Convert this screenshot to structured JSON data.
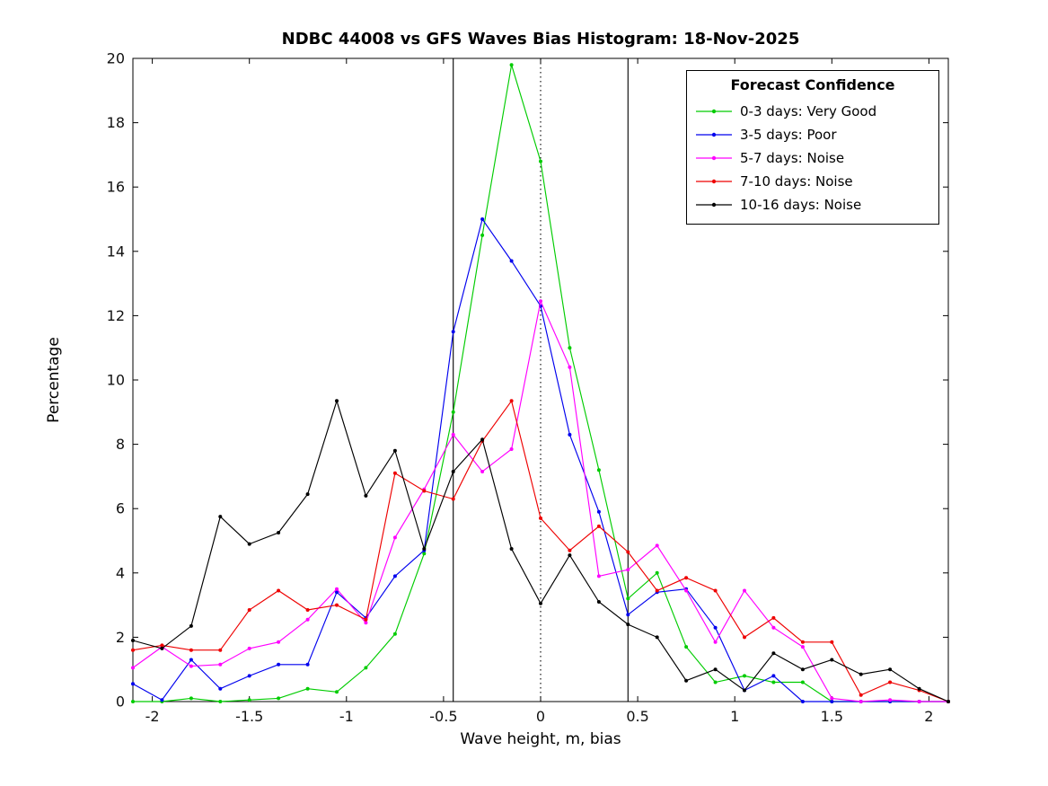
{
  "chart_data": {
    "type": "line",
    "title": "NDBC 44008 vs GFS Waves Bias Histogram: 18-Nov-2025",
    "xlabel": "Wave height, m, bias",
    "ylabel": "Percentage",
    "xlim": [
      -2.1,
      2.1
    ],
    "ylim": [
      0,
      20
    ],
    "grid": false,
    "x_ticks": [
      -2,
      -1.5,
      -1,
      -0.5,
      0,
      0.5,
      1,
      1.5,
      2
    ],
    "x_tick_labels": [
      "-2",
      "-1.5",
      "-1",
      "-0.5",
      "0",
      "0.5",
      "1",
      "1.5",
      "2"
    ],
    "y_ticks": [
      0,
      2,
      4,
      6,
      8,
      10,
      12,
      14,
      16,
      18,
      20
    ],
    "y_tick_labels": [
      "0",
      "2",
      "4",
      "6",
      "8",
      "10",
      "12",
      "14",
      "16",
      "18",
      "20"
    ],
    "x": [
      -2.1,
      -1.95,
      -1.8,
      -1.65,
      -1.5,
      -1.35,
      -1.2,
      -1.05,
      -0.9,
      -0.75,
      -0.6,
      -0.45,
      -0.3,
      -0.15,
      0,
      0.15,
      0.3,
      0.45,
      0.6,
      0.75,
      0.9,
      1.05,
      1.2,
      1.35,
      1.5,
      1.65,
      1.8,
      1.95,
      2.1
    ],
    "series": [
      {
        "name": "0-3 days: Very Good",
        "color": "#00cc00",
        "values": [
          0,
          0,
          0.1,
          0,
          0.05,
          0.1,
          0.4,
          0.3,
          1.05,
          2.1,
          4.6,
          9.0,
          14.5,
          19.8,
          16.8,
          11.0,
          7.2,
          3.2,
          4.0,
          1.7,
          0.6,
          0.8,
          0.6,
          0.6,
          0,
          0,
          0,
          0,
          0
        ]
      },
      {
        "name": "3-5 days: Poor",
        "color": "#0000ee",
        "values": [
          0.55,
          0.05,
          1.3,
          0.4,
          0.8,
          1.15,
          1.15,
          3.4,
          2.6,
          3.9,
          4.7,
          11.5,
          15.0,
          13.7,
          12.3,
          8.3,
          5.9,
          2.7,
          3.4,
          3.5,
          2.3,
          0.35,
          0.8,
          0,
          0,
          0,
          0,
          0,
          0
        ]
      },
      {
        "name": "5-7 days: Noise",
        "color": "#ff00ff",
        "values": [
          1.05,
          1.7,
          1.1,
          1.15,
          1.65,
          1.85,
          2.55,
          3.5,
          2.45,
          5.1,
          6.6,
          8.3,
          7.15,
          7.85,
          12.45,
          10.4,
          3.9,
          4.1,
          4.85,
          3.45,
          1.85,
          3.45,
          2.3,
          1.7,
          0.1,
          0,
          0.05,
          0,
          0
        ]
      },
      {
        "name": "7-10 days: Noise",
        "color": "#ee0000",
        "values": [
          1.6,
          1.75,
          1.6,
          1.6,
          2.85,
          3.45,
          2.85,
          3.0,
          2.55,
          7.1,
          6.55,
          6.3,
          8.1,
          9.35,
          5.7,
          4.7,
          5.45,
          4.65,
          3.45,
          3.85,
          3.45,
          2.0,
          2.6,
          1.85,
          1.85,
          0.2,
          0.6,
          0.35,
          0
        ]
      },
      {
        "name": "10-16 days: Noise",
        "color": "#000000",
        "values": [
          1.9,
          1.65,
          2.35,
          5.75,
          4.9,
          5.25,
          6.45,
          9.35,
          6.4,
          7.8,
          4.75,
          7.15,
          8.15,
          4.75,
          3.05,
          4.55,
          3.1,
          2.4,
          2.0,
          0.65,
          1.0,
          0.35,
          1.5,
          1.0,
          1.3,
          0.85,
          1.0,
          0.4,
          0
        ]
      }
    ],
    "reference_lines": [
      {
        "x": -0.45,
        "style": "solid"
      },
      {
        "x": 0,
        "style": "dotted"
      },
      {
        "x": 0.45,
        "style": "solid"
      }
    ],
    "legend": {
      "title": "Forecast Confidence",
      "position": "top-right"
    }
  }
}
